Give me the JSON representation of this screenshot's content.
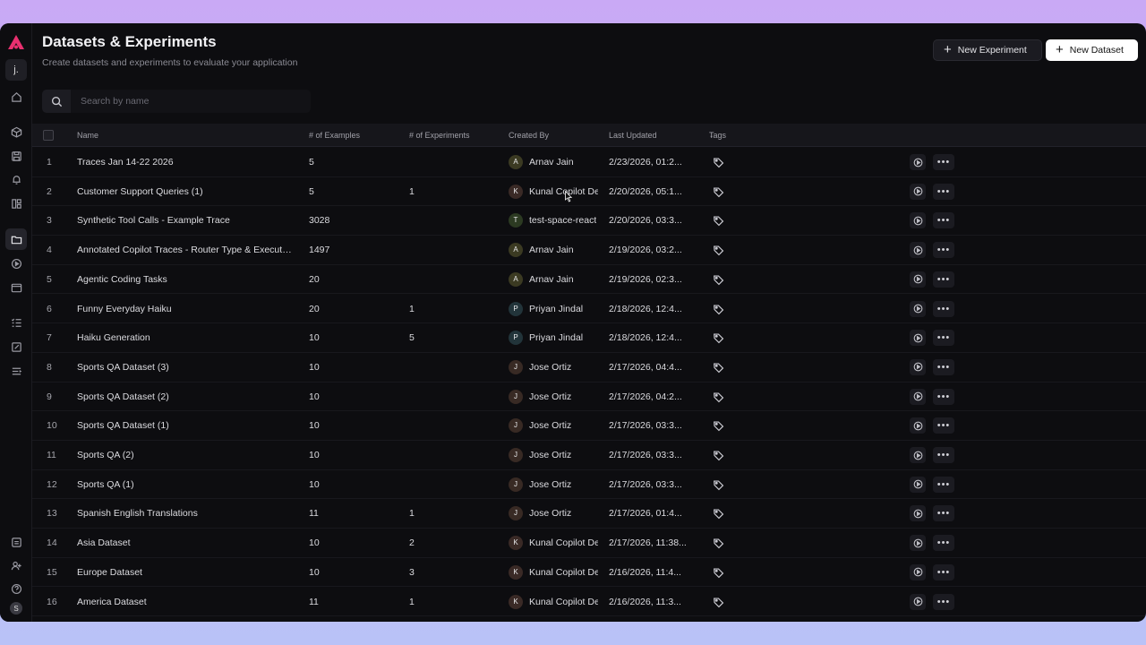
{
  "header": {
    "title": "Datasets & Experiments",
    "subtitle": "Create datasets and experiments to evaluate your application",
    "new_experiment_label": "New Experiment",
    "new_dataset_label": "New Dataset"
  },
  "sidebar": {
    "workspace_initial": "j.",
    "user_initial": "S",
    "accent_color": "#e8306f"
  },
  "search": {
    "placeholder": "Search by name",
    "value": ""
  },
  "table": {
    "columns": {
      "name": "Name",
      "examples": "# of Examples",
      "experiments": "# of Experiments",
      "created_by": "Created By",
      "last_updated": "Last Updated",
      "tags": "Tags"
    },
    "sort": {
      "column": "Last Updated",
      "direction": "descending"
    },
    "rows": [
      {
        "num": "1",
        "name": "Traces Jan 14-22 2026",
        "examples": "5",
        "experiments": "",
        "initial": "A",
        "creator": "Arnav Jain",
        "updated": "2/23/2026, 01:2...",
        "avatar_color": "#3b3a22"
      },
      {
        "num": "2",
        "name": "Customer Support Queries (1)",
        "examples": "5",
        "experiments": "1",
        "initial": "K",
        "creator": "Kunal Copilot Dev",
        "updated": "2/20/2026, 05:1...",
        "avatar_color": "#3a2a26"
      },
      {
        "num": "3",
        "name": "Synthetic Tool Calls - Example Trace",
        "examples": "3028",
        "experiments": "",
        "initial": "T",
        "creator": "test-space-react",
        "updated": "2/20/2026, 03:3...",
        "avatar_color": "#2c3a22"
      },
      {
        "num": "4",
        "name": "Annotated Copilot Traces - Router Type & Execution",
        "examples": "1497",
        "experiments": "",
        "initial": "A",
        "creator": "Arnav Jain",
        "updated": "2/19/2026, 03:2...",
        "avatar_color": "#3b3a22"
      },
      {
        "num": "5",
        "name": "Agentic Coding Tasks",
        "examples": "20",
        "experiments": "",
        "initial": "A",
        "creator": "Arnav Jain",
        "updated": "2/19/2026, 02:3...",
        "avatar_color": "#3b3a22"
      },
      {
        "num": "6",
        "name": "Funny Everyday Haiku",
        "examples": "20",
        "experiments": "1",
        "initial": "P",
        "creator": "Priyan Jindal",
        "updated": "2/18/2026, 12:4...",
        "avatar_color": "#22343a"
      },
      {
        "num": "7",
        "name": "Haiku Generation",
        "examples": "10",
        "experiments": "5",
        "initial": "P",
        "creator": "Priyan Jindal",
        "updated": "2/18/2026, 12:4...",
        "avatar_color": "#22343a"
      },
      {
        "num": "8",
        "name": "Sports QA Dataset (3)",
        "examples": "10",
        "experiments": "",
        "initial": "J",
        "creator": "Jose Ortiz",
        "updated": "2/17/2026, 04:4...",
        "avatar_color": "#382a24"
      },
      {
        "num": "9",
        "name": "Sports QA Dataset (2)",
        "examples": "10",
        "experiments": "",
        "initial": "J",
        "creator": "Jose Ortiz",
        "updated": "2/17/2026, 04:2...",
        "avatar_color": "#382a24"
      },
      {
        "num": "10",
        "name": "Sports QA Dataset (1)",
        "examples": "10",
        "experiments": "",
        "initial": "J",
        "creator": "Jose Ortiz",
        "updated": "2/17/2026, 03:3...",
        "avatar_color": "#382a24"
      },
      {
        "num": "11",
        "name": "Sports QA (2)",
        "examples": "10",
        "experiments": "",
        "initial": "J",
        "creator": "Jose Ortiz",
        "updated": "2/17/2026, 03:3...",
        "avatar_color": "#382a24"
      },
      {
        "num": "12",
        "name": "Sports QA (1)",
        "examples": "10",
        "experiments": "",
        "initial": "J",
        "creator": "Jose Ortiz",
        "updated": "2/17/2026, 03:3...",
        "avatar_color": "#382a24"
      },
      {
        "num": "13",
        "name": "Spanish English Translations",
        "examples": "11",
        "experiments": "1",
        "initial": "J",
        "creator": "Jose Ortiz",
        "updated": "2/17/2026, 01:4...",
        "avatar_color": "#382a24"
      },
      {
        "num": "14",
        "name": "Asia Dataset",
        "examples": "10",
        "experiments": "2",
        "initial": "K",
        "creator": "Kunal Copilot Dev",
        "updated": "2/17/2026, 11:38...",
        "avatar_color": "#3a2a26"
      },
      {
        "num": "15",
        "name": "Europe Dataset",
        "examples": "10",
        "experiments": "3",
        "initial": "K",
        "creator": "Kunal Copilot Dev",
        "updated": "2/16/2026, 11:4...",
        "avatar_color": "#3a2a26"
      },
      {
        "num": "16",
        "name": "America Dataset",
        "examples": "11",
        "experiments": "1",
        "initial": "K",
        "creator": "Kunal Copilot Dev",
        "updated": "2/16/2026, 11:3...",
        "avatar_color": "#3a2a26"
      }
    ]
  }
}
